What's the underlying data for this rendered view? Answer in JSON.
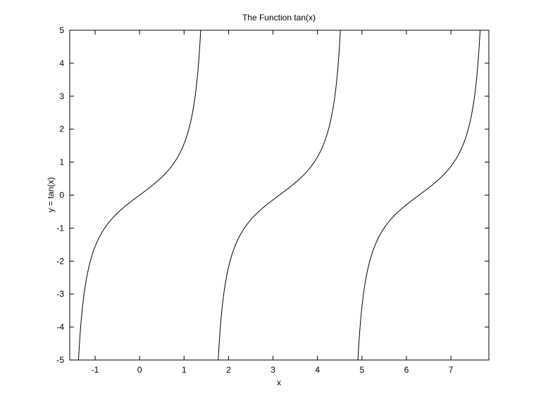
{
  "chart_data": {
    "type": "line",
    "title": "The Function tan(x)",
    "xlabel": "x",
    "ylabel": "y = tan(x)",
    "series": [
      {
        "function": "tan(x)",
        "x_range": [
          -1.5708,
          7.854
        ],
        "color": "#000000"
      }
    ],
    "xlim": [
      -1.5708,
      7.854
    ],
    "ylim": [
      -5,
      5
    ],
    "xticks": [
      -1,
      0,
      1,
      2,
      3,
      4,
      5,
      6,
      7
    ],
    "yticks": [
      -5,
      -4,
      -3,
      -2,
      -1,
      0,
      1,
      2,
      3,
      4,
      5
    ],
    "grid": false,
    "legend": "none"
  }
}
